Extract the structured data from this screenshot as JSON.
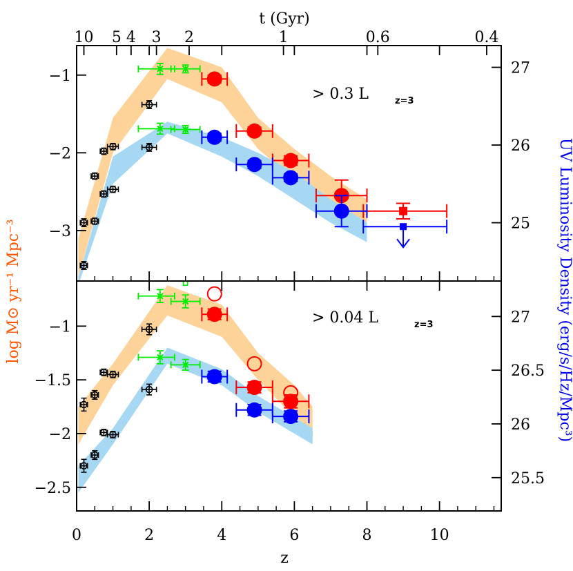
{
  "chart_data": {
    "type": "scatter",
    "xlabel": "z",
    "top_axis_label": "t (Gyr)",
    "left_ylabel": "log M⊙ yr⁻¹ Mpc⁻³",
    "right_ylabel": "UV Luminosity Density (erg/s/Hz/Mpc³)",
    "xlim": [
      0,
      11.7
    ],
    "x_ticks": [
      "0",
      "2",
      "4",
      "6",
      "8",
      "10"
    ],
    "x_tick_values": [
      0,
      2,
      4,
      6,
      8,
      10
    ],
    "top_ticks": [
      {
        "label": "10",
        "z": 0.2
      },
      {
        "label": "5",
        "z": 1.1
      },
      {
        "label": "4",
        "z": 1.5
      },
      {
        "label": "3",
        "z": 2.2
      },
      {
        "label": "2",
        "z": 3.1
      },
      {
        "label": "1",
        "z": 5.7
      },
      {
        "label": "0.6",
        "z": 8.3
      },
      {
        "label": "0.4",
        "z": 11.3
      }
    ],
    "colors": {
      "orange_band": "#fdd39a",
      "blue_band": "#a6d8f3",
      "red": "#ff0000",
      "blue": "#0000ff",
      "green": "#00ee00",
      "black": "#000000",
      "left_label": "#ff5500",
      "right_label": "#0000ee"
    },
    "panels": [
      {
        "annotation": "> 0.3 L",
        "annotation_sub": "z=3",
        "ylim": [
          -3.65,
          -0.62
        ],
        "left_ticks": [
          -1,
          -2,
          -3
        ],
        "left_tick_labels": [
          "−1",
          "−2",
          "−3"
        ],
        "right_ticks": [
          {
            "label": "27",
            "y": -0.9
          },
          {
            "label": "26",
            "y": -1.9
          },
          {
            "label": "25",
            "y": -2.9
          }
        ],
        "orange_band": {
          "upper": [
            [
              0.05,
              -3.1
            ],
            [
              1.0,
              -1.55
            ],
            [
              2.5,
              -0.65
            ],
            [
              4.0,
              -0.9
            ],
            [
              5.0,
              -1.55
            ],
            [
              6.0,
              -1.95
            ],
            [
              7.0,
              -2.3
            ],
            [
              8.0,
              -2.6
            ]
          ],
          "lower": [
            [
              8.0,
              -2.95
            ],
            [
              7.0,
              -2.7
            ],
            [
              6.0,
              -2.35
            ],
            [
              5.0,
              -1.95
            ],
            [
              4.0,
              -1.35
            ],
            [
              2.5,
              -1.05
            ],
            [
              1.0,
              -2.0
            ],
            [
              0.05,
              -3.6
            ]
          ]
        },
        "blue_band": {
          "upper": [
            [
              0.05,
              -3.6
            ],
            [
              1.0,
              -2.05
            ],
            [
              2.5,
              -1.6
            ],
            [
              4.0,
              -1.8
            ],
            [
              5.0,
              -2.0
            ],
            [
              6.0,
              -2.25
            ],
            [
              7.0,
              -2.6
            ],
            [
              8.0,
              -2.9
            ]
          ],
          "lower": [
            [
              8.0,
              -3.15
            ],
            [
              7.0,
              -2.9
            ],
            [
              6.0,
              -2.6
            ],
            [
              5.0,
              -2.3
            ],
            [
              4.0,
              -2.05
            ],
            [
              2.5,
              -1.75
            ],
            [
              1.0,
              -2.4
            ],
            [
              0.05,
              -3.7
            ]
          ]
        },
        "black_points": [
          {
            "x": 0.2,
            "y": -2.9,
            "xerr": 0.1,
            "yerr": 0.05
          },
          {
            "x": 0.2,
            "y": -3.45,
            "xerr": 0.1,
            "yerr": 0.05
          },
          {
            "x": 0.5,
            "y": -2.3,
            "xerr": 0.1,
            "yerr": 0.04
          },
          {
            "x": 0.5,
            "y": -2.88,
            "xerr": 0.1,
            "yerr": 0.04
          },
          {
            "x": 0.75,
            "y": -1.98,
            "xerr": 0.1,
            "yerr": 0.04
          },
          {
            "x": 0.75,
            "y": -2.53,
            "xerr": 0.1,
            "yerr": 0.04
          },
          {
            "x": 1.0,
            "y": -1.92,
            "xerr": 0.15,
            "yerr": 0.04
          },
          {
            "x": 1.0,
            "y": -2.47,
            "xerr": 0.15,
            "yerr": 0.04
          },
          {
            "x": 2.0,
            "y": -1.38,
            "xerr": 0.2,
            "yerr": 0.05
          },
          {
            "x": 2.0,
            "y": -1.93,
            "xerr": 0.2,
            "yerr": 0.05
          }
        ],
        "green_points": [
          {
            "x": 2.3,
            "y": -0.92,
            "xerr_lo": 0.6,
            "xerr_hi": 0.4,
            "yerr": 0.07
          },
          {
            "x": 3.0,
            "y": -0.92,
            "xerr_lo": 0.4,
            "xerr_hi": 0.4,
            "yerr": 0.05
          },
          {
            "x": 2.3,
            "y": -1.69,
            "xerr_lo": 0.6,
            "xerr_hi": 0.4,
            "yerr": 0.07
          },
          {
            "x": 3.0,
            "y": -1.7,
            "xerr_lo": 0.4,
            "xerr_hi": 0.4,
            "yerr": 0.05
          }
        ],
        "red_points": [
          {
            "x": 3.8,
            "y": -1.05,
            "xerr": 0.35,
            "yerr": 0.05,
            "marker": "filled-circle"
          },
          {
            "x": 4.9,
            "y": -1.72,
            "xerr": 0.5,
            "yerr": 0.05,
            "marker": "filled-circle"
          },
          {
            "x": 5.9,
            "y": -2.1,
            "xerr": 0.5,
            "yerr": 0.06,
            "marker": "filled-circle"
          },
          {
            "x": 7.3,
            "y": -2.55,
            "xerr": 0.7,
            "yerr": 0.2,
            "marker": "filled-circle"
          },
          {
            "x": 9.0,
            "y": -2.75,
            "xerr_lo": 1.1,
            "xerr_hi": 1.2,
            "yerr": 0.1,
            "marker": "filled-square"
          }
        ],
        "blue_points": [
          {
            "x": 3.8,
            "y": -1.8,
            "xerr": 0.35,
            "yerr": 0.05,
            "marker": "filled-circle"
          },
          {
            "x": 4.9,
            "y": -2.15,
            "xerr": 0.5,
            "yerr": 0.05,
            "marker": "filled-circle"
          },
          {
            "x": 5.9,
            "y": -2.32,
            "xerr": 0.5,
            "yerr": 0.05,
            "marker": "filled-circle"
          },
          {
            "x": 7.3,
            "y": -2.75,
            "xerr": 0.7,
            "yerr": 0.2,
            "marker": "filled-circle"
          },
          {
            "x": 9.0,
            "y": -2.95,
            "xerr_lo": 1.1,
            "xerr_hi": 1.2,
            "marker": "upper-limit"
          }
        ],
        "green_small_squares": [],
        "red_open_circles": []
      },
      {
        "annotation": "> 0.04 L",
        "annotation_sub": "z=3",
        "ylim": [
          -2.72,
          -0.58
        ],
        "left_ticks": [
          -1,
          -1.5,
          -2,
          -2.5
        ],
        "left_tick_labels": [
          "−1",
          "−1.5",
          "−2",
          "−2.5"
        ],
        "right_ticks": [
          {
            "label": "27",
            "y": -0.91
          },
          {
            "label": "26.5",
            "y": -1.41
          },
          {
            "label": "26",
            "y": -1.91
          },
          {
            "label": "25.5",
            "y": -2.41
          }
        ],
        "orange_band": {
          "upper": [
            [
              0.05,
              -1.75
            ],
            [
              1.0,
              -1.35
            ],
            [
              2.5,
              -0.62
            ],
            [
              4.0,
              -0.8
            ],
            [
              5.0,
              -1.25
            ],
            [
              6.0,
              -1.55
            ],
            [
              6.5,
              -1.75
            ]
          ],
          "lower": [
            [
              6.5,
              -2.05
            ],
            [
              6.0,
              -1.85
            ],
            [
              5.0,
              -1.5
            ],
            [
              4.0,
              -1.1
            ],
            [
              2.5,
              -0.9
            ],
            [
              1.0,
              -1.55
            ],
            [
              0.05,
              -2.1
            ]
          ]
        },
        "blue_band": {
          "upper": [
            [
              0.05,
              -2.3
            ],
            [
              1.0,
              -1.95
            ],
            [
              2.5,
              -1.2
            ],
            [
              4.0,
              -1.4
            ],
            [
              5.0,
              -1.65
            ],
            [
              6.0,
              -1.85
            ],
            [
              6.5,
              -1.95
            ]
          ],
          "lower": [
            [
              6.5,
              -2.1
            ],
            [
              6.0,
              -2.0
            ],
            [
              5.0,
              -1.8
            ],
            [
              4.0,
              -1.55
            ],
            [
              2.5,
              -1.35
            ],
            [
              1.0,
              -2.1
            ],
            [
              0.05,
              -2.55
            ]
          ]
        },
        "black_points": [
          {
            "x": 0.2,
            "y": -1.73,
            "xerr": 0.1,
            "yerr": 0.06
          },
          {
            "x": 0.2,
            "y": -2.3,
            "xerr": 0.1,
            "yerr": 0.06
          },
          {
            "x": 0.5,
            "y": -1.64,
            "xerr": 0.1,
            "yerr": 0.04
          },
          {
            "x": 0.5,
            "y": -2.2,
            "xerr": 0.1,
            "yerr": 0.04
          },
          {
            "x": 0.75,
            "y": -1.43,
            "xerr": 0.1,
            "yerr": 0.03
          },
          {
            "x": 0.75,
            "y": -1.99,
            "xerr": 0.1,
            "yerr": 0.03
          },
          {
            "x": 1.0,
            "y": -1.45,
            "xerr": 0.15,
            "yerr": 0.03
          },
          {
            "x": 1.0,
            "y": -2.01,
            "xerr": 0.15,
            "yerr": 0.03
          },
          {
            "x": 2.0,
            "y": -1.03,
            "xerr": 0.2,
            "yerr": 0.05
          },
          {
            "x": 2.0,
            "y": -1.59,
            "xerr": 0.2,
            "yerr": 0.05
          }
        ],
        "green_points": [
          {
            "x": 2.3,
            "y": -0.72,
            "xerr_lo": 0.6,
            "xerr_hi": 0.4,
            "yerr": 0.06
          },
          {
            "x": 3.0,
            "y": -0.77,
            "xerr_lo": 0.4,
            "xerr_hi": 0.4,
            "yerr": 0.06
          },
          {
            "x": 2.3,
            "y": -1.29,
            "xerr_lo": 0.6,
            "xerr_hi": 0.4,
            "yerr": 0.06
          },
          {
            "x": 3.0,
            "y": -1.36,
            "xerr_lo": 0.4,
            "xerr_hi": 0.4,
            "yerr": 0.05
          }
        ],
        "red_points": [
          {
            "x": 3.8,
            "y": -0.89,
            "xerr": 0.35,
            "yerr": 0.05,
            "marker": "filled-circle"
          },
          {
            "x": 4.9,
            "y": -1.57,
            "xerr": 0.5,
            "yerr": 0.05,
            "marker": "filled-circle"
          },
          {
            "x": 5.9,
            "y": -1.7,
            "xerr": 0.5,
            "yerr": 0.06,
            "marker": "filled-circle"
          }
        ],
        "blue_points": [
          {
            "x": 3.8,
            "y": -1.47,
            "xerr": 0.35,
            "yerr": 0.05,
            "marker": "filled-circle"
          },
          {
            "x": 4.9,
            "y": -1.78,
            "xerr": 0.5,
            "yerr": 0.05,
            "marker": "filled-circle"
          },
          {
            "x": 5.9,
            "y": -1.84,
            "xerr": 0.5,
            "yerr": 0.05,
            "marker": "filled-circle"
          }
        ],
        "green_small_squares": [
          {
            "x": 3.0,
            "y": -0.6
          }
        ],
        "red_open_circles": [
          {
            "x": 3.8,
            "y": -0.7
          },
          {
            "x": 4.9,
            "y": -1.35
          },
          {
            "x": 5.9,
            "y": -1.62
          }
        ]
      }
    ]
  }
}
